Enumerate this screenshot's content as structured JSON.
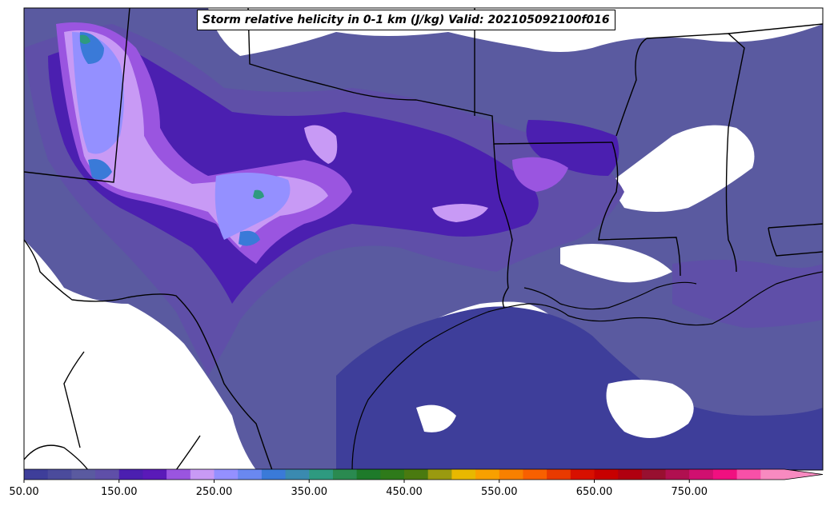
{
  "title": "Storm relative helicity in 0-1 km (J/kg) Valid: 202105092100f016",
  "colorbar": {
    "ticks": [
      "50.00",
      "150.00",
      "250.00",
      "350.00",
      "450.00",
      "550.00",
      "650.00",
      "750.00"
    ],
    "tick_values": [
      50,
      150,
      250,
      350,
      450,
      550,
      650,
      750
    ],
    "min": 50,
    "max": 850,
    "extend": "max",
    "colors": [
      "#3e3e9a",
      "#4b4b9c",
      "#5a5aa0",
      "#5f4fa8",
      "#4b1fb0",
      "#5a1ab8",
      "#9a55e0",
      "#c89af5",
      "#9490ff",
      "#6a88f0",
      "#3a7ad8",
      "#3a8ab0",
      "#2e9a80",
      "#2a8a50",
      "#1e7a2a",
      "#2e7a1a",
      "#4a7a10",
      "#9a9a10",
      "#e8b800",
      "#f8a000",
      "#f88000",
      "#f86000",
      "#e83a00",
      "#d81000",
      "#c80000",
      "#b00010",
      "#981030",
      "#b01050",
      "#d01070",
      "#f01080",
      "#f850a8",
      "#f88ac0"
    ]
  },
  "map": {
    "region": "South-central United States",
    "background": "#ffffff",
    "boundary_color": "#000000"
  }
}
